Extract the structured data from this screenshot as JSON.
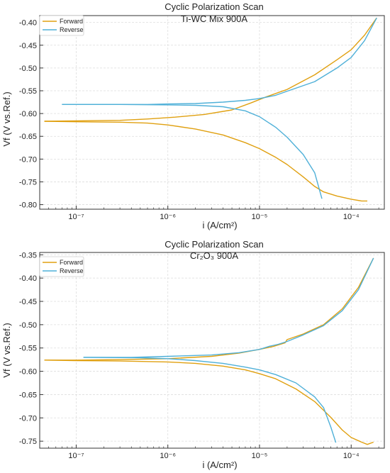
{
  "colors": {
    "forward": "#E0A010",
    "reverse": "#4FB0D8",
    "grid": "#DDDDDD",
    "axis": "#333333"
  },
  "chart_data": [
    {
      "type": "line",
      "title": "Cyclic Polarization Scan",
      "subtitle": "Ti-WC Mix 900A",
      "xlabel": "i (A/cm²)",
      "ylabel": "Vf (V vs.Ref.)",
      "xscale": "log",
      "xlim": [
        4e-08,
        0.00023
      ],
      "ylim": [
        -0.81,
        -0.385
      ],
      "xticks": [
        1e-07,
        1e-06,
        1e-05,
        0.0001
      ],
      "xtick_labels": [
        "10⁻⁷",
        "10⁻⁶",
        "10⁻⁵",
        "10⁻⁴"
      ],
      "yticks": [
        -0.8,
        -0.75,
        -0.7,
        -0.65,
        -0.6,
        -0.55,
        -0.5,
        -0.45,
        -0.4
      ],
      "ytick_labels": [
        "-0.80",
        "-0.75",
        "-0.70",
        "-0.65",
        "-0.60",
        "-0.55",
        "-0.50",
        "-0.45",
        "-0.40"
      ],
      "grid": true,
      "legend": "top-left",
      "series": [
        {
          "name": "Forward",
          "color_key": "forward",
          "points": [
            [
              4.5e-08,
              -0.617
            ],
            [
              1e-07,
              -0.616
            ],
            [
              3e-07,
              -0.615
            ],
            [
              6e-07,
              -0.612
            ],
            [
              1.2e-06,
              -0.608
            ],
            [
              2.5e-06,
              -0.602
            ],
            [
              5e-06,
              -0.592
            ],
            [
              8e-06,
              -0.577
            ],
            [
              1.2e-05,
              -0.563
            ],
            [
              2e-05,
              -0.547
            ],
            [
              4e-05,
              -0.515
            ],
            [
              7e-05,
              -0.482
            ],
            [
              0.0001,
              -0.46
            ],
            [
              0.00014,
              -0.428
            ],
            [
              0.00019,
              -0.39
            ]
          ]
        },
        {
          "name": "Forward",
          "color_key": "forward",
          "points": [
            [
              4.5e-08,
              -0.617
            ],
            [
              1e-07,
              -0.618
            ],
            [
              3e-07,
              -0.619
            ],
            [
              6e-07,
              -0.621
            ],
            [
              1e-06,
              -0.625
            ],
            [
              2e-06,
              -0.634
            ],
            [
              4e-06,
              -0.647
            ],
            [
              7e-06,
              -0.664
            ],
            [
              1e-05,
              -0.677
            ],
            [
              1.5e-05,
              -0.696
            ],
            [
              2e-05,
              -0.712
            ],
            [
              3e-05,
              -0.739
            ],
            [
              4e-05,
              -0.76
            ],
            [
              5e-05,
              -0.772
            ],
            [
              7e-05,
              -0.781
            ],
            [
              0.0001,
              -0.788
            ],
            [
              0.00013,
              -0.792
            ],
            [
              0.00015,
              -0.792
            ]
          ]
        },
        {
          "name": "Reverse",
          "color_key": "reverse",
          "points": [
            [
              7e-08,
              -0.58
            ],
            [
              2e-07,
              -0.58
            ],
            [
              6e-07,
              -0.58
            ],
            [
              1e-06,
              -0.579
            ],
            [
              2e-06,
              -0.578
            ],
            [
              4e-06,
              -0.575
            ],
            [
              7e-06,
              -0.571
            ],
            [
              1e-05,
              -0.567
            ],
            [
              1.5e-05,
              -0.56
            ],
            [
              2e-05,
              -0.551
            ],
            [
              4e-05,
              -0.53
            ],
            [
              7e-05,
              -0.5
            ],
            [
              0.0001,
              -0.477
            ],
            [
              0.00014,
              -0.44
            ],
            [
              0.00019,
              -0.39
            ]
          ]
        },
        {
          "name": "Reverse",
          "color_key": "reverse",
          "points": [
            [
              7e-08,
              -0.58
            ],
            [
              3e-07,
              -0.58
            ],
            [
              1e-06,
              -0.581
            ],
            [
              2e-06,
              -0.582
            ],
            [
              4e-06,
              -0.585
            ],
            [
              7e-06,
              -0.594
            ],
            [
              1e-05,
              -0.607
            ],
            [
              1.5e-05,
              -0.63
            ],
            [
              2e-05,
              -0.652
            ],
            [
              3e-05,
              -0.69
            ],
            [
              4e-05,
              -0.73
            ],
            [
              4.8e-05,
              -0.787
            ]
          ]
        }
      ]
    },
    {
      "type": "line",
      "title": "Cyclic Polarization Scan",
      "subtitle": "Cr₂O₃ 900A",
      "xlabel": "i (A/cm²)",
      "ylabel": "Vf (V vs.Ref.)",
      "xscale": "log",
      "xlim": [
        4e-08,
        0.00023
      ],
      "ylim": [
        -0.765,
        -0.345
      ],
      "xticks": [
        1e-07,
        1e-06,
        1e-05,
        0.0001
      ],
      "xtick_labels": [
        "10⁻⁷",
        "10⁻⁶",
        "10⁻⁵",
        "10⁻⁴"
      ],
      "yticks": [
        -0.75,
        -0.7,
        -0.65,
        -0.6,
        -0.55,
        -0.5,
        -0.45,
        -0.4,
        -0.35
      ],
      "ytick_labels": [
        "-0.75",
        "-0.70",
        "-0.65",
        "-0.60",
        "-0.55",
        "-0.50",
        "-0.45",
        "-0.40",
        "-0.35"
      ],
      "grid": true,
      "legend": "top-left",
      "series": [
        {
          "name": "Forward",
          "color_key": "forward",
          "points": [
            [
              4.5e-08,
              -0.576
            ],
            [
              1e-07,
              -0.576
            ],
            [
              3e-07,
              -0.575
            ],
            [
              1e-06,
              -0.573
            ],
            [
              3e-06,
              -0.568
            ],
            [
              6e-06,
              -0.561
            ],
            [
              1e-05,
              -0.553
            ],
            [
              1.4e-05,
              -0.547
            ],
            [
              1.9e-05,
              -0.539
            ],
            [
              2e-05,
              -0.532
            ],
            [
              3e-05,
              -0.52
            ],
            [
              5e-05,
              -0.5
            ],
            [
              8e-05,
              -0.466
            ],
            [
              0.00012,
              -0.42
            ],
            [
              0.000175,
              -0.357
            ]
          ]
        },
        {
          "name": "Forward",
          "color_key": "forward",
          "points": [
            [
              4.5e-08,
              -0.576
            ],
            [
              1e-07,
              -0.577
            ],
            [
              3e-07,
              -0.578
            ],
            [
              1e-06,
              -0.58
            ],
            [
              2e-06,
              -0.583
            ],
            [
              4e-06,
              -0.589
            ],
            [
              7e-06,
              -0.597
            ],
            [
              1e-05,
              -0.605
            ],
            [
              1.5e-05,
              -0.616
            ],
            [
              2.5e-05,
              -0.638
            ],
            [
              4e-05,
              -0.665
            ],
            [
              6e-05,
              -0.699
            ],
            [
              8e-05,
              -0.726
            ],
            [
              0.0001,
              -0.742
            ],
            [
              0.00013,
              -0.752
            ],
            [
              0.00015,
              -0.757
            ],
            [
              0.000175,
              -0.752
            ]
          ]
        },
        {
          "name": "Reverse",
          "color_key": "reverse",
          "points": [
            [
              1.2e-07,
              -0.57
            ],
            [
              4e-07,
              -0.57
            ],
            [
              1e-06,
              -0.568
            ],
            [
              3e-06,
              -0.565
            ],
            [
              6e-06,
              -0.56
            ],
            [
              1e-05,
              -0.553
            ],
            [
              1.3e-05,
              -0.546
            ],
            [
              1.6e-05,
              -0.542
            ],
            [
              2e-05,
              -0.536
            ],
            [
              3e-05,
              -0.522
            ],
            [
              5e-05,
              -0.502
            ],
            [
              8e-05,
              -0.47
            ],
            [
              0.00012,
              -0.425
            ],
            [
              0.000175,
              -0.357
            ]
          ]
        },
        {
          "name": "Reverse",
          "color_key": "reverse",
          "points": [
            [
              1.2e-07,
              -0.57
            ],
            [
              5e-07,
              -0.571
            ],
            [
              1e-06,
              -0.573
            ],
            [
              2e-06,
              -0.577
            ],
            [
              4e-06,
              -0.583
            ],
            [
              7e-06,
              -0.591
            ],
            [
              1e-05,
              -0.597
            ],
            [
              1.5e-05,
              -0.607
            ],
            [
              2.5e-05,
              -0.625
            ],
            [
              4e-05,
              -0.655
            ],
            [
              5e-05,
              -0.678
            ],
            [
              6e-05,
              -0.72
            ],
            [
              6.8e-05,
              -0.753
            ]
          ]
        }
      ]
    }
  ]
}
